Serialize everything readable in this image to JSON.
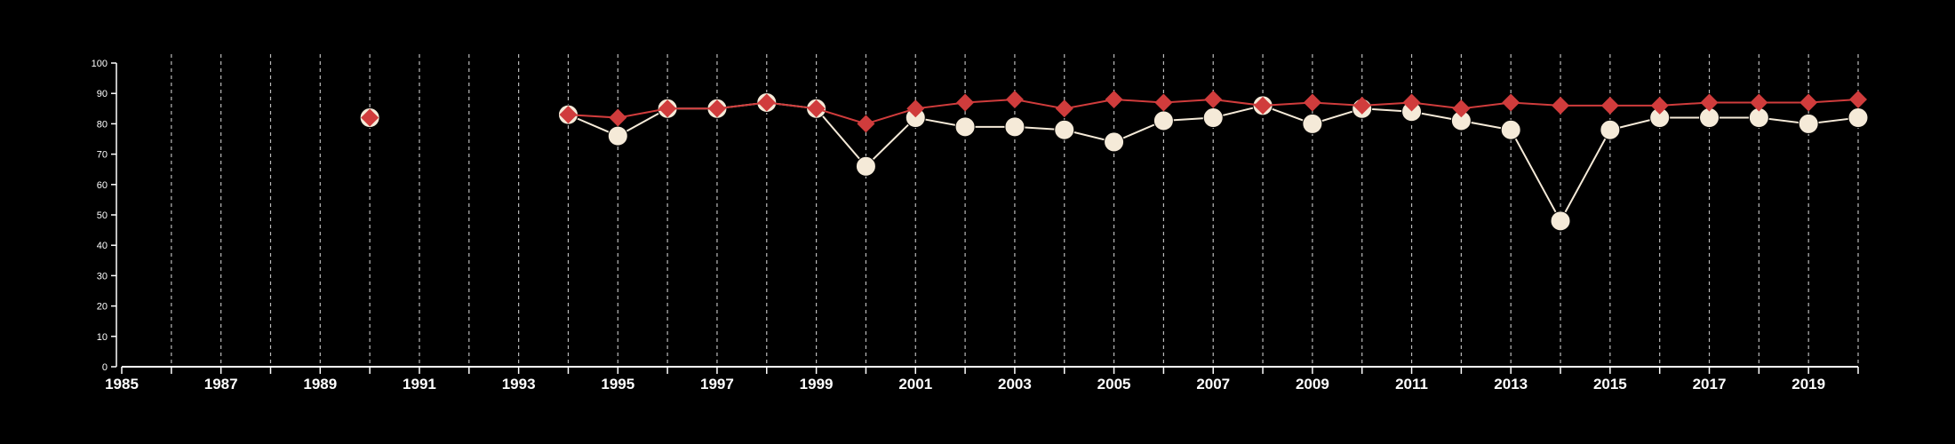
{
  "chart_data": {
    "type": "line",
    "title": "",
    "xlabel": "",
    "ylabel": "",
    "xlim": [
      1985,
      2020
    ],
    "ylim": [
      0,
      100
    ],
    "x_ticks": [
      1985,
      1986,
      1987,
      1988,
      1989,
      1990,
      1991,
      1992,
      1993,
      1994,
      1995,
      1996,
      1997,
      1998,
      1999,
      2000,
      2001,
      2002,
      2003,
      2004,
      2005,
      2006,
      2007,
      2008,
      2009,
      2010,
      2011,
      2012,
      2013,
      2014,
      2015,
      2016,
      2017,
      2018,
      2019,
      2020
    ],
    "x_tick_labels": [
      "1985",
      "1987",
      "1989",
      "1991",
      "1993",
      "1995",
      "1997",
      "1999",
      "2001",
      "2003",
      "2005",
      "2007",
      "2009",
      "2011",
      "2013",
      "2015",
      "2017",
      "2019"
    ],
    "y_ticks": [
      0,
      10,
      20,
      30,
      40,
      50,
      60,
      70,
      80,
      90,
      100
    ],
    "y_tick_labels": [
      "0",
      "10",
      "20",
      "30",
      "40",
      "50",
      "60",
      "70",
      "80",
      "90",
      "100"
    ],
    "grid": {
      "x": true,
      "y": false,
      "style": "dashed"
    },
    "legend": "none",
    "colors": {
      "background": "#000000",
      "axis": "#ffffff",
      "grid": "#bbbbbb",
      "series_a": "#f5ead8",
      "series_b": "#d03c3c"
    },
    "series": [
      {
        "color": "#f5ead8",
        "marker": "circle",
        "segments": [
          [
            [
              1990,
              82
            ]
          ],
          [
            [
              1994,
              83
            ],
            [
              1995,
              76
            ],
            [
              1996,
              85
            ],
            [
              1997,
              85
            ],
            [
              1998,
              87
            ],
            [
              1999,
              85
            ],
            [
              2000,
              66
            ],
            [
              2001,
              82
            ],
            [
              2002,
              79
            ],
            [
              2003,
              79
            ],
            [
              2004,
              78
            ],
            [
              2005,
              74
            ],
            [
              2006,
              81
            ],
            [
              2007,
              82
            ],
            [
              2008,
              86
            ],
            [
              2009,
              80
            ],
            [
              2010,
              85
            ],
            [
              2011,
              84
            ],
            [
              2012,
              81
            ],
            [
              2013,
              78
            ],
            [
              2014,
              48
            ],
            [
              2015,
              78
            ],
            [
              2016,
              82
            ],
            [
              2017,
              82
            ],
            [
              2018,
              82
            ],
            [
              2019,
              80
            ],
            [
              2020,
              82
            ]
          ]
        ]
      },
      {
        "color": "#d03c3c",
        "marker": "diamond",
        "segments": [
          [
            [
              1990,
              82
            ]
          ],
          [
            [
              1994,
              83
            ],
            [
              1995,
              82
            ],
            [
              1996,
              85
            ],
            [
              1997,
              85
            ],
            [
              1998,
              87
            ],
            [
              1999,
              85
            ],
            [
              2000,
              80
            ],
            [
              2001,
              85
            ],
            [
              2002,
              87
            ],
            [
              2003,
              88
            ],
            [
              2004,
              85
            ],
            [
              2005,
              88
            ],
            [
              2006,
              87
            ],
            [
              2007,
              88
            ],
            [
              2008,
              86
            ],
            [
              2009,
              87
            ],
            [
              2010,
              86
            ],
            [
              2011,
              87
            ],
            [
              2012,
              85
            ],
            [
              2013,
              87
            ],
            [
              2014,
              86
            ],
            [
              2015,
              86
            ],
            [
              2016,
              86
            ],
            [
              2017,
              87
            ],
            [
              2018,
              87
            ],
            [
              2019,
              87
            ],
            [
              2020,
              88
            ]
          ]
        ]
      }
    ]
  }
}
